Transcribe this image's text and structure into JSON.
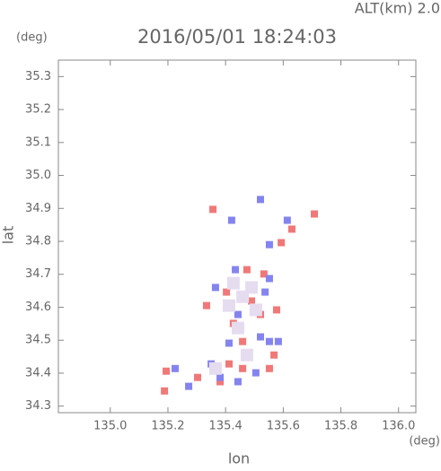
{
  "chart_data": {
    "type": "scatter",
    "title": "2016/05/01 18:24:03",
    "annotation": "ALT(km)  2.0",
    "y_unit": "(deg)",
    "x_unit": "(deg)",
    "x_label": "lon",
    "y_label": "lat",
    "xlim": [
      134.82,
      136.06
    ],
    "ylim": [
      34.28,
      35.35
    ],
    "xticks": [
      {
        "value": 135.0,
        "label": "135.0"
      },
      135.2,
      135.4,
      135.6,
      135.8,
      {
        "value": 136.0,
        "label": "136.0"
      }
    ],
    "yticks": [
      34.3,
      34.4,
      34.5,
      34.6,
      34.7,
      34.8,
      34.9,
      {
        "value": 35.0,
        "label": "35.0"
      },
      35.1,
      35.2,
      35.3
    ],
    "series": [
      {
        "color": "#f07878",
        "x": [
          135.356,
          135.708,
          135.63,
          135.593,
          135.577,
          135.521,
          135.403,
          135.49,
          135.459,
          135.412,
          135.459,
          135.552,
          135.303,
          135.381,
          135.188,
          135.194,
          135.568,
          135.427,
          135.533,
          135.474,
          135.334
        ],
        "y": [
          34.897,
          34.883,
          34.837,
          34.796,
          34.592,
          34.578,
          34.646,
          34.619,
          34.496,
          34.428,
          34.414,
          34.414,
          34.387,
          34.374,
          34.346,
          34.406,
          34.455,
          34.551,
          34.701,
          34.714,
          34.605
        ]
      },
      {
        "color": "#8484f0",
        "x": [
          135.421,
          135.552,
          135.614,
          135.537,
          135.552,
          135.434,
          135.365,
          135.443,
          135.521,
          135.552,
          135.412,
          135.381,
          135.272,
          135.225,
          135.443,
          135.505,
          135.35,
          135.583,
          135.521
        ],
        "y": [
          34.864,
          34.79,
          34.864,
          34.646,
          34.687,
          34.714,
          34.66,
          34.578,
          34.51,
          34.496,
          34.491,
          34.387,
          34.36,
          34.414,
          34.374,
          34.401,
          34.428,
          34.496,
          34.927
        ]
      },
      {
        "color": "#e6dcf0",
        "x": [
          135.459,
          135.412,
          135.505,
          135.49,
          135.443,
          135.474,
          135.365,
          135.427
        ],
        "y": [
          34.632,
          34.605,
          34.592,
          34.66,
          34.537,
          34.455,
          34.414,
          34.673
        ]
      }
    ]
  }
}
